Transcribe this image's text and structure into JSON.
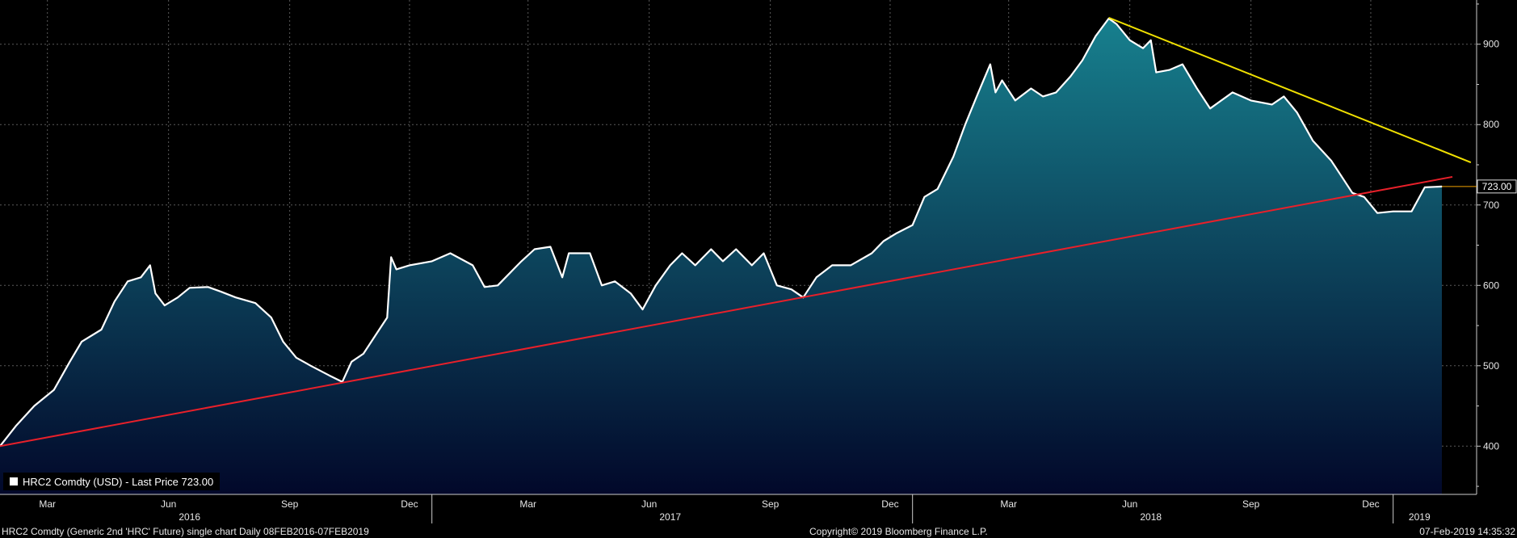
{
  "chart_data": {
    "type": "area",
    "title": "",
    "xlabel": "",
    "ylabel": "",
    "yticks": [
      400,
      500,
      600,
      700,
      800,
      900
    ],
    "ylim": [
      340,
      955
    ],
    "xlim": [
      "2016-02-08",
      "2019-02-07"
    ],
    "month_ticks": [
      {
        "label": "Mar",
        "date": "2016-03-15"
      },
      {
        "label": "Jun",
        "date": "2016-06-15"
      },
      {
        "label": "Sep",
        "date": "2016-09-15"
      },
      {
        "label": "Dec",
        "date": "2016-12-15"
      },
      {
        "label": "Mar",
        "date": "2017-03-15"
      },
      {
        "label": "Jun",
        "date": "2017-06-15"
      },
      {
        "label": "Sep",
        "date": "2017-09-15"
      },
      {
        "label": "Dec",
        "date": "2017-12-15"
      },
      {
        "label": "Mar",
        "date": "2018-03-15"
      },
      {
        "label": "Jun",
        "date": "2018-06-15"
      },
      {
        "label": "Sep",
        "date": "2018-09-15"
      },
      {
        "label": "Dec",
        "date": "2018-12-15"
      }
    ],
    "year_ticks": [
      {
        "label": "2016",
        "date": "2016-07-01"
      },
      {
        "label": "2017",
        "date": "2017-07-01"
      },
      {
        "label": "2018",
        "date": "2018-07-01"
      },
      {
        "label": "2019",
        "date": "2019-01-21"
      }
    ],
    "year_dividers": [
      "2017-01-01",
      "2018-01-01",
      "2019-01-01"
    ],
    "series": [
      {
        "name": "HRC2 Comdty (USD) - Last Price",
        "color": "#ffffff",
        "points": [
          [
            "2016-02-08",
            400
          ],
          [
            "2016-02-20",
            425
          ],
          [
            "2016-03-05",
            450
          ],
          [
            "2016-03-20",
            470
          ],
          [
            "2016-04-01",
            505
          ],
          [
            "2016-04-10",
            530
          ],
          [
            "2016-04-25",
            545
          ],
          [
            "2016-05-05",
            580
          ],
          [
            "2016-05-15",
            605
          ],
          [
            "2016-05-25",
            610
          ],
          [
            "2016-06-01",
            625
          ],
          [
            "2016-06-05",
            590
          ],
          [
            "2016-06-12",
            575
          ],
          [
            "2016-06-22",
            585
          ],
          [
            "2016-07-01",
            597
          ],
          [
            "2016-07-15",
            598
          ],
          [
            "2016-07-25",
            592
          ],
          [
            "2016-08-05",
            585
          ],
          [
            "2016-08-20",
            578
          ],
          [
            "2016-09-01",
            560
          ],
          [
            "2016-09-10",
            530
          ],
          [
            "2016-09-20",
            510
          ],
          [
            "2016-10-01",
            500
          ],
          [
            "2016-10-15",
            488
          ],
          [
            "2016-10-25",
            480
          ],
          [
            "2016-11-01",
            505
          ],
          [
            "2016-11-10",
            515
          ],
          [
            "2016-11-20",
            540
          ],
          [
            "2016-11-28",
            560
          ],
          [
            "2016-12-01",
            635
          ],
          [
            "2016-12-05",
            620
          ],
          [
            "2016-12-15",
            625
          ],
          [
            "2017-01-01",
            630
          ],
          [
            "2017-01-15",
            640
          ],
          [
            "2017-02-01",
            625
          ],
          [
            "2017-02-10",
            598
          ],
          [
            "2017-02-20",
            600
          ],
          [
            "2017-03-01",
            615
          ],
          [
            "2017-03-10",
            630
          ],
          [
            "2017-03-20",
            645
          ],
          [
            "2017-04-01",
            648
          ],
          [
            "2017-04-10",
            610
          ],
          [
            "2017-04-15",
            640
          ],
          [
            "2017-05-01",
            640
          ],
          [
            "2017-05-10",
            600
          ],
          [
            "2017-05-20",
            605
          ],
          [
            "2017-06-01",
            590
          ],
          [
            "2017-06-10",
            570
          ],
          [
            "2017-06-20",
            600
          ],
          [
            "2017-07-01",
            625
          ],
          [
            "2017-07-10",
            640
          ],
          [
            "2017-07-20",
            625
          ],
          [
            "2017-08-01",
            645
          ],
          [
            "2017-08-10",
            630
          ],
          [
            "2017-08-20",
            645
          ],
          [
            "2017-09-01",
            625
          ],
          [
            "2017-09-10",
            640
          ],
          [
            "2017-09-20",
            600
          ],
          [
            "2017-10-01",
            595
          ],
          [
            "2017-10-10",
            585
          ],
          [
            "2017-10-20",
            610
          ],
          [
            "2017-11-01",
            625
          ],
          [
            "2017-11-15",
            625
          ],
          [
            "2017-12-01",
            640
          ],
          [
            "2017-12-10",
            655
          ],
          [
            "2017-12-20",
            665
          ],
          [
            "2018-01-01",
            675
          ],
          [
            "2018-01-10",
            710
          ],
          [
            "2018-01-20",
            720
          ],
          [
            "2018-02-01",
            760
          ],
          [
            "2018-02-10",
            800
          ],
          [
            "2018-02-20",
            840
          ],
          [
            "2018-03-01",
            875
          ],
          [
            "2018-03-05",
            840
          ],
          [
            "2018-03-10",
            855
          ],
          [
            "2018-03-20",
            830
          ],
          [
            "2018-04-01",
            845
          ],
          [
            "2018-04-10",
            835
          ],
          [
            "2018-04-20",
            840
          ],
          [
            "2018-05-01",
            860
          ],
          [
            "2018-05-10",
            880
          ],
          [
            "2018-05-20",
            910
          ],
          [
            "2018-05-30",
            932
          ],
          [
            "2018-06-05",
            925
          ],
          [
            "2018-06-15",
            905
          ],
          [
            "2018-06-25",
            895
          ],
          [
            "2018-07-01",
            905
          ],
          [
            "2018-07-05",
            865
          ],
          [
            "2018-07-15",
            868
          ],
          [
            "2018-07-25",
            875
          ],
          [
            "2018-08-05",
            845
          ],
          [
            "2018-08-15",
            820
          ],
          [
            "2018-09-01",
            840
          ],
          [
            "2018-09-15",
            830
          ],
          [
            "2018-10-01",
            825
          ],
          [
            "2018-10-10",
            835
          ],
          [
            "2018-10-20",
            815
          ],
          [
            "2018-11-01",
            780
          ],
          [
            "2018-11-15",
            755
          ],
          [
            "2018-12-01",
            715
          ],
          [
            "2018-12-10",
            710
          ],
          [
            "2018-12-20",
            690
          ],
          [
            "2019-01-01",
            692
          ],
          [
            "2019-01-15",
            692
          ],
          [
            "2019-01-25",
            722
          ],
          [
            "2019-02-07",
            723
          ]
        ]
      }
    ],
    "trendlines": [
      {
        "color": "#e8202a",
        "from": [
          "2016-02-08",
          400
        ],
        "to": [
          "2019-02-15",
          735
        ]
      },
      {
        "color": "#f0e000",
        "from": [
          "2018-05-30",
          933
        ],
        "to": [
          "2019-03-01",
          753
        ]
      }
    ],
    "last_price_label": "723.00",
    "last_price_value": 723,
    "legend": {
      "text": "HRC2 Comdty (USD) - Last Price 723.00",
      "position": "bottom-left"
    },
    "grid": true
  },
  "footer": {
    "left": "HRC2 Comdty (Generic 2nd 'HRC' Future) single chart  Daily 08FEB2016-07FEB2019",
    "center": "Copyright© 2019 Bloomberg Finance L.P.",
    "right": "07-Feb-2019 14:35:32"
  },
  "colors": {
    "background": "#000000",
    "area_top": "#17808e",
    "area_bottom": "#02082a",
    "grid": "#5a5a5a",
    "axis_text": "#e6e6e6",
    "last_price_line": "#f0a000"
  }
}
